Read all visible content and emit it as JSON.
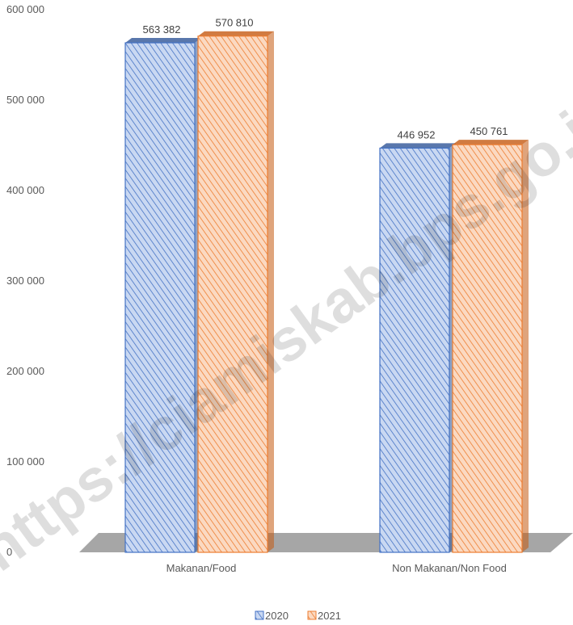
{
  "chart_data": {
    "type": "bar",
    "categories": [
      "Makanan/Food",
      "Non Makanan/Non Food"
    ],
    "series": [
      {
        "name": "2020",
        "values": [
          563382,
          446952
        ],
        "labels": [
          "563 382",
          "446 952"
        ],
        "color": "#4472C4"
      },
      {
        "name": "2021",
        "values": [
          570810,
          450761
        ],
        "labels": [
          "570 810",
          "450 761"
        ],
        "color": "#ED7D31"
      }
    ],
    "y_ticks": [
      "0",
      "100 000",
      "200 000",
      "300 000",
      "400 000",
      "500 000",
      "600 000"
    ],
    "ylim": [
      0,
      600000
    ],
    "title": "",
    "xlabel": "",
    "ylabel": "",
    "grid": false,
    "legend_position": "bottom",
    "style": "3d-column-hatched"
  },
  "watermark": "https://ciamiskab.bps.go.id"
}
